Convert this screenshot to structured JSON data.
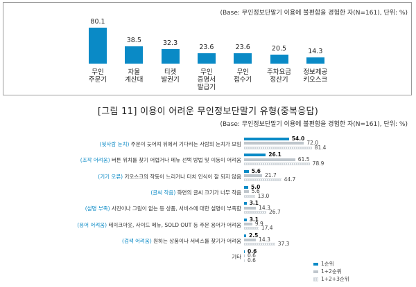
{
  "chart_data": [
    {
      "type": "bar",
      "base_note": "(Base: 무인정보단말기 이용에 불편함을 경험한 자(N=161), 단위: %)",
      "categories": [
        "무인\n주문기",
        "자율\n계산대",
        "티켓\n발권기",
        "무인\n증명서\n발급기",
        "무인\n접수기",
        "주차요금\n정산기",
        "정보제공\n키오스크"
      ],
      "values": [
        80.1,
        38.5,
        32.3,
        23.6,
        23.6,
        20.5,
        14.3
      ],
      "value_labels": [
        "80.1",
        "38.5",
        "32.3",
        "23.6",
        "23.6",
        "20.5",
        "14.3"
      ],
      "color": "#0a8ac6"
    },
    {
      "type": "bar",
      "title": "[그림 11] 이용이 어려운 무인정보단말기 유형(중복응답)",
      "base_note": "(Base: 무인정보단말기 이용에 불편함을 경험한 자(N=161), 단위: %)",
      "orientation": "horizontal",
      "categories": [
        {
          "tag": "(뒷사람 눈치)",
          "text": "주문이 늦어져 뒤에서 기다리는 사람의 눈치가 보임"
        },
        {
          "tag": "(조작 어려움)",
          "text": "버튼 위치를 찾기 어렵거나 메뉴 선택 방법 및 이동이 어려움"
        },
        {
          "tag": "(기기 오류)",
          "text": "키오스크의 작동이 느리거나 터치 인식이 잘 되지 않음"
        },
        {
          "tag": "(글씨 작음)",
          "text": "화면의 글씨 크기가 너무 작음"
        },
        {
          "tag": "(설명 부족)",
          "text": "사진이나 그림이 없는 등 상품, 서비스에 대한 설명이 부족함"
        },
        {
          "tag": "(용어 어려움)",
          "text": "테이크아웃, 사이드 메뉴, SOLD OUT 등 주문 용어가 어려움"
        },
        {
          "tag": "(검색 어려움)",
          "text": "원하는 상품이나 서비스를 찾기가 어려움"
        },
        {
          "tag": "",
          "text": "기타"
        }
      ],
      "series": [
        {
          "name": "1순위",
          "values": [
            54.0,
            26.1,
            5.6,
            5.0,
            3.1,
            3.1,
            2.5,
            0.6
          ],
          "labels": [
            "54.0",
            "26.1",
            "5.6",
            "5.0",
            "3.1",
            "3.1",
            "2.5",
            "0.6"
          ],
          "color": "#0a8ac6"
        },
        {
          "name": "1+2순위",
          "values": [
            72.0,
            61.5,
            21.7,
            5.6,
            14.3,
            9.9,
            14.3,
            0.6
          ],
          "labels": [
            "72.0",
            "61.5",
            "21.7",
            "5.6",
            "14.3",
            "9.9",
            "14.3",
            "0.6"
          ],
          "color": "#bfc6cc"
        },
        {
          "name": "1+2+3순위",
          "values": [
            81.4,
            78.9,
            44.7,
            13.0,
            26.7,
            17.4,
            37.3,
            0.6
          ],
          "labels": [
            "81.4",
            "78.9",
            "44.7",
            "13.0",
            "26.7",
            "17.4",
            "37.3",
            "0.6"
          ],
          "color": "#d0d6da"
        }
      ]
    }
  ]
}
